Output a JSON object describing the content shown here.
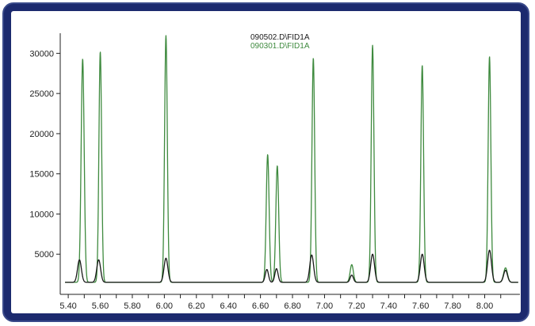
{
  "chart_data": {
    "type": "line",
    "title": "",
    "xlabel": "",
    "ylabel": "",
    "xlim": [
      5.35,
      8.22
    ],
    "ylim": [
      0,
      32500
    ],
    "x_ticks": [
      5.4,
      5.5,
      5.6,
      5.7,
      5.8,
      5.9,
      6.0,
      6.1,
      6.2,
      6.3,
      6.4,
      6.5,
      6.6,
      6.7,
      6.8,
      6.9,
      7.0,
      7.1,
      7.2,
      7.3,
      7.4,
      7.5,
      7.6,
      7.7,
      7.8,
      7.9,
      8.0,
      8.1
    ],
    "x_tick_labels": [
      "5.40",
      "5.60",
      "5.80",
      "6.00",
      "6.20",
      "6.40",
      "6.60",
      "6.80",
      "7.00",
      "7.20",
      "7.40",
      "7.60",
      "7.80",
      "8.00"
    ],
    "y_tick_labels": [
      "5000",
      "10000",
      "15000",
      "20000",
      "25000",
      "30000"
    ],
    "y_ticks": [
      5000,
      10000,
      15000,
      20000,
      25000,
      30000
    ],
    "grid": false,
    "legend_position": "top-center",
    "baseline": 1500,
    "series": [
      {
        "name": "090502.D\\FID1A",
        "color": "#1a1a1a",
        "peaks": [
          {
            "x": 5.47,
            "y": 4300,
            "w": 0.012
          },
          {
            "x": 5.59,
            "y": 4300,
            "w": 0.012
          },
          {
            "x": 6.01,
            "y": 4500,
            "w": 0.012
          },
          {
            "x": 6.64,
            "y": 3100,
            "w": 0.01
          },
          {
            "x": 6.7,
            "y": 3200,
            "w": 0.01
          },
          {
            "x": 6.92,
            "y": 4900,
            "w": 0.012
          },
          {
            "x": 7.17,
            "y": 2400,
            "w": 0.01
          },
          {
            "x": 7.3,
            "y": 5000,
            "w": 0.012
          },
          {
            "x": 7.61,
            "y": 5000,
            "w": 0.012
          },
          {
            "x": 8.03,
            "y": 5500,
            "w": 0.012
          },
          {
            "x": 8.13,
            "y": 3000,
            "w": 0.012
          }
        ]
      },
      {
        "name": "090301.D\\FID1A",
        "color": "#3e8a3e",
        "peaks": [
          {
            "x": 5.49,
            "y": 29300,
            "w": 0.0095
          },
          {
            "x": 5.6,
            "y": 30200,
            "w": 0.0085
          },
          {
            "x": 6.01,
            "y": 32200,
            "w": 0.0085
          },
          {
            "x": 6.645,
            "y": 17400,
            "w": 0.009
          },
          {
            "x": 6.705,
            "y": 16000,
            "w": 0.009
          },
          {
            "x": 6.93,
            "y": 29400,
            "w": 0.0085
          },
          {
            "x": 7.17,
            "y": 3700,
            "w": 0.01
          },
          {
            "x": 7.3,
            "y": 31000,
            "w": 0.0085
          },
          {
            "x": 7.61,
            "y": 28500,
            "w": 0.0085
          },
          {
            "x": 8.03,
            "y": 29600,
            "w": 0.0085
          },
          {
            "x": 8.13,
            "y": 3300,
            "w": 0.012
          }
        ]
      }
    ]
  }
}
